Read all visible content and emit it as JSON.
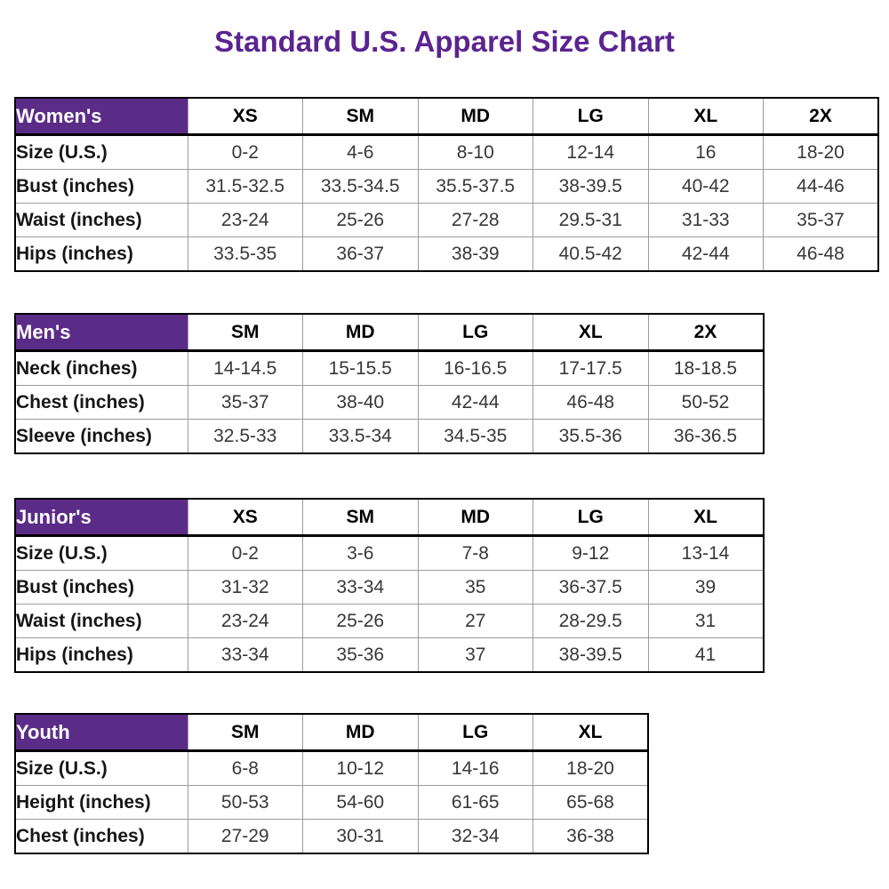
{
  "title": "Standard U.S. Apparel Size Chart",
  "colors": {
    "title_purple": "#5b2490",
    "header_purple": "#5b2c87",
    "header_text": "#ffffff",
    "grid_gray": "#9c9c9c",
    "border_black": "#000000"
  },
  "tables": [
    {
      "name": "Women's",
      "columns": [
        "XS",
        "SM",
        "MD",
        "LG",
        "XL",
        "2X"
      ],
      "rows": [
        {
          "label": "Size (U.S.)",
          "values": [
            "0-2",
            "4-6",
            "8-10",
            "12-14",
            "16",
            "18-20"
          ]
        },
        {
          "label": "Bust (inches)",
          "values": [
            "31.5-32.5",
            "33.5-34.5",
            "35.5-37.5",
            "38-39.5",
            "40-42",
            "44-46"
          ]
        },
        {
          "label": "Waist (inches)",
          "values": [
            "23-24",
            "25-26",
            "27-28",
            "29.5-31",
            "31-33",
            "35-37"
          ]
        },
        {
          "label": "Hips (inches)",
          "values": [
            "33.5-35",
            "36-37",
            "38-39",
            "40.5-42",
            "42-44",
            "46-48"
          ]
        }
      ]
    },
    {
      "name": "Men's",
      "columns": [
        "SM",
        "MD",
        "LG",
        "XL",
        "2X"
      ],
      "rows": [
        {
          "label": "Neck (inches)",
          "values": [
            "14-14.5",
            "15-15.5",
            "16-16.5",
            "17-17.5",
            "18-18.5"
          ]
        },
        {
          "label": "Chest (inches)",
          "values": [
            "35-37",
            "38-40",
            "42-44",
            "46-48",
            "50-52"
          ]
        },
        {
          "label": "Sleeve (inches)",
          "values": [
            "32.5-33",
            "33.5-34",
            "34.5-35",
            "35.5-36",
            "36-36.5"
          ]
        }
      ]
    },
    {
      "name": "Junior's",
      "columns": [
        "XS",
        "SM",
        "MD",
        "LG",
        "XL"
      ],
      "rows": [
        {
          "label": "Size (U.S.)",
          "values": [
            "0-2",
            "3-6",
            "7-8",
            "9-12",
            "13-14"
          ]
        },
        {
          "label": "Bust (inches)",
          "values": [
            "31-32",
            "33-34",
            "35",
            "36-37.5",
            "39"
          ]
        },
        {
          "label": "Waist (inches)",
          "values": [
            "23-24",
            "25-26",
            "27",
            "28-29.5",
            "31"
          ]
        },
        {
          "label": "Hips (inches)",
          "values": [
            "33-34",
            "35-36",
            "37",
            "38-39.5",
            "41"
          ]
        }
      ]
    },
    {
      "name": "Youth",
      "columns": [
        "SM",
        "MD",
        "LG",
        "XL"
      ],
      "rows": [
        {
          "label": "Size (U.S.)",
          "values": [
            "6-8",
            "10-12",
            "14-16",
            "18-20"
          ]
        },
        {
          "label": "Height (inches)",
          "values": [
            "50-53",
            "54-60",
            "61-65",
            "65-68"
          ]
        },
        {
          "label": "Chest (inches)",
          "values": [
            "27-29",
            "30-31",
            "32-34",
            "36-38"
          ]
        }
      ]
    }
  ]
}
